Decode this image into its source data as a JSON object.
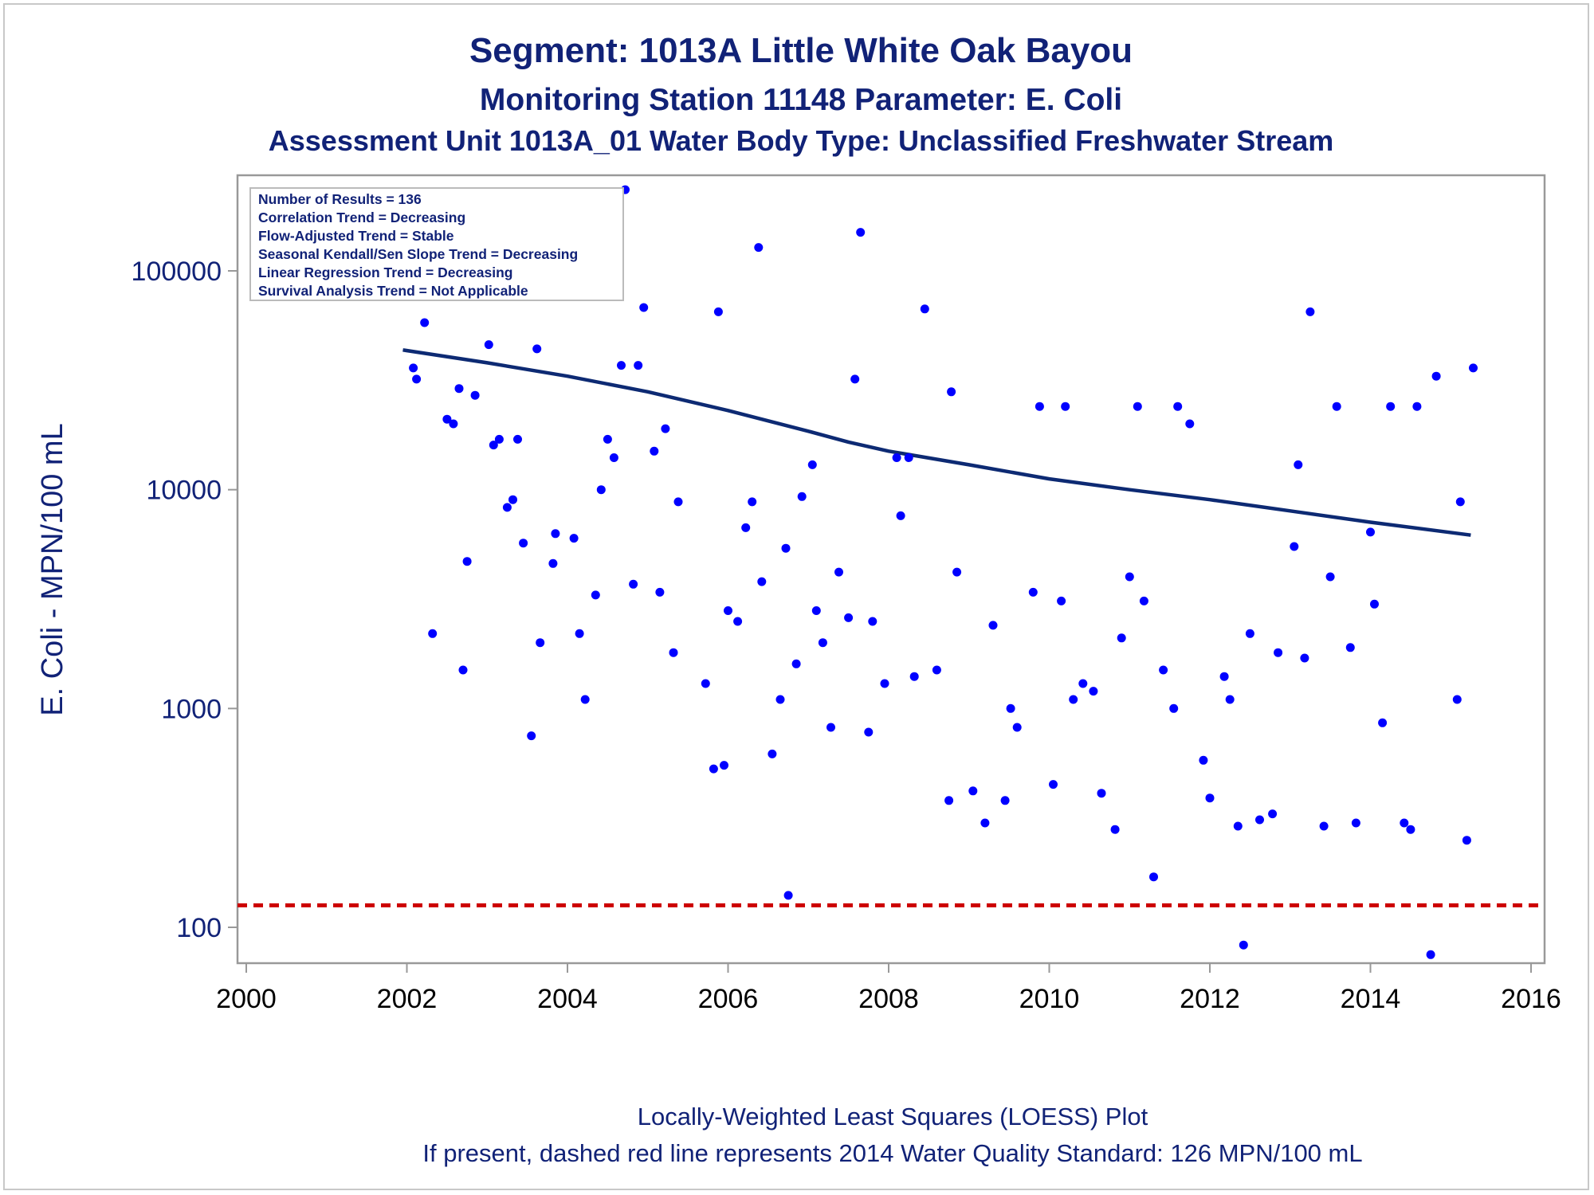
{
  "colors": {
    "title": "#112277",
    "axis_text": "#112277",
    "tick_text": "#000000",
    "point": "#0000ff",
    "loess": "#0d2a73",
    "standard_line": "#cc0000",
    "frame": "#999999",
    "legend_border": "#bbbbbb"
  },
  "chart_data": {
    "type": "scatter",
    "title": "Segment: 1013A  Little White Oak Bayou",
    "subtitle": "Monitoring Station 11148 Parameter: E. Coli",
    "subtitle2": "Assessment Unit 1013A_01   Water Body Type: Unclassified Freshwater Stream",
    "xlabel": "",
    "ylabel": "E. Coli - MPN/100 mL",
    "x_scale": "linear",
    "y_scale": "log",
    "xlim": [
      2000,
      2016
    ],
    "ylim": [
      68,
      260000
    ],
    "x_ticks": [
      2000,
      2002,
      2004,
      2006,
      2008,
      2010,
      2012,
      2014,
      2016
    ],
    "x_tick_labels": [
      "2000",
      "2002",
      "2004",
      "2006",
      "2008",
      "2010",
      "2012",
      "2014",
      "2016"
    ],
    "y_ticks": [
      100,
      1000,
      10000,
      100000
    ],
    "y_tick_labels": [
      "100",
      "1000",
      "10000",
      "100000"
    ],
    "grid": false,
    "legend_placement": "top-left",
    "stats_box": [
      "Number of Results = 136",
      "Correlation Trend = Decreasing",
      "Flow-Adjusted Trend = Stable",
      "Seasonal Kendall/Sen Slope Trend = Decreasing",
      "Linear Regression Trend = Decreasing",
      "Survival Analysis Trend = Not Applicable"
    ],
    "reference_line": {
      "y": 126,
      "style": "dashed"
    },
    "series": [
      {
        "kind": "scatter",
        "points": [
          [
            2001.92,
            155000
          ],
          [
            2001.98,
            196000
          ],
          [
            2002.08,
            36000
          ],
          [
            2002.12,
            32000
          ],
          [
            2002.22,
            58000
          ],
          [
            2002.32,
            2200
          ],
          [
            2002.4,
            155000
          ],
          [
            2002.5,
            21000
          ],
          [
            2002.58,
            20000
          ],
          [
            2002.65,
            29000
          ],
          [
            2002.7,
            1500
          ],
          [
            2002.75,
            4700
          ],
          [
            2002.85,
            27000
          ],
          [
            2003.02,
            46000
          ],
          [
            2003.08,
            16000
          ],
          [
            2003.15,
            17000
          ],
          [
            2003.25,
            8300
          ],
          [
            2003.32,
            9000
          ],
          [
            2003.38,
            17000
          ],
          [
            2003.45,
            5700
          ],
          [
            2003.55,
            750
          ],
          [
            2003.62,
            44000
          ],
          [
            2003.66,
            2000
          ],
          [
            2003.82,
            4600
          ],
          [
            2003.85,
            6300
          ],
          [
            2003.92,
            77000
          ],
          [
            2004.08,
            6000
          ],
          [
            2004.15,
            2200
          ],
          [
            2004.22,
            1100
          ],
          [
            2004.35,
            3300
          ],
          [
            2004.42,
            10000
          ],
          [
            2004.5,
            17000
          ],
          [
            2004.58,
            14000
          ],
          [
            2004.67,
            37000
          ],
          [
            2004.72,
            235000
          ],
          [
            2004.82,
            3700
          ],
          [
            2004.88,
            37000
          ],
          [
            2004.95,
            68000
          ],
          [
            2005.08,
            15000
          ],
          [
            2005.15,
            3400
          ],
          [
            2005.22,
            19000
          ],
          [
            2005.32,
            1800
          ],
          [
            2005.38,
            8800
          ],
          [
            2005.72,
            1300
          ],
          [
            2005.82,
            530
          ],
          [
            2005.88,
            65000
          ],
          [
            2005.95,
            550
          ],
          [
            2006.0,
            2800
          ],
          [
            2006.12,
            2500
          ],
          [
            2006.22,
            6700
          ],
          [
            2006.3,
            8800
          ],
          [
            2006.38,
            128000
          ],
          [
            2006.42,
            3800
          ],
          [
            2006.55,
            620
          ],
          [
            2006.65,
            1100
          ],
          [
            2006.72,
            5400
          ],
          [
            2006.75,
            140
          ],
          [
            2006.85,
            1600
          ],
          [
            2006.92,
            9300
          ],
          [
            2007.05,
            13000
          ],
          [
            2007.1,
            2800
          ],
          [
            2007.18,
            2000
          ],
          [
            2007.28,
            820
          ],
          [
            2007.38,
            4200
          ],
          [
            2007.5,
            2600
          ],
          [
            2007.58,
            32000
          ],
          [
            2007.65,
            150000
          ],
          [
            2007.75,
            780
          ],
          [
            2007.8,
            2500
          ],
          [
            2007.95,
            1300
          ],
          [
            2008.1,
            14000
          ],
          [
            2008.15,
            7600
          ],
          [
            2008.25,
            14000
          ],
          [
            2008.32,
            1400
          ],
          [
            2008.45,
            67000
          ],
          [
            2008.6,
            1500
          ],
          [
            2008.75,
            380
          ],
          [
            2008.78,
            28000
          ],
          [
            2008.85,
            4200
          ],
          [
            2009.05,
            420
          ],
          [
            2009.2,
            300
          ],
          [
            2009.3,
            2400
          ],
          [
            2009.45,
            380
          ],
          [
            2009.52,
            1000
          ],
          [
            2009.6,
            820
          ],
          [
            2009.8,
            3400
          ],
          [
            2009.88,
            24000
          ],
          [
            2010.05,
            450
          ],
          [
            2010.15,
            3100
          ],
          [
            2010.2,
            24000
          ],
          [
            2010.3,
            1100
          ],
          [
            2010.42,
            1300
          ],
          [
            2010.55,
            1200
          ],
          [
            2010.65,
            410
          ],
          [
            2010.82,
            280
          ],
          [
            2010.9,
            2100
          ],
          [
            2011.0,
            4000
          ],
          [
            2011.1,
            24000
          ],
          [
            2011.18,
            3100
          ],
          [
            2011.3,
            170
          ],
          [
            2011.42,
            1500
          ],
          [
            2011.55,
            1000
          ],
          [
            2011.6,
            24000
          ],
          [
            2011.75,
            20000
          ],
          [
            2011.92,
            580
          ],
          [
            2012.0,
            390
          ],
          [
            2012.18,
            1400
          ],
          [
            2012.25,
            1100
          ],
          [
            2012.35,
            290
          ],
          [
            2012.42,
            83
          ],
          [
            2012.5,
            2200
          ],
          [
            2012.62,
            310
          ],
          [
            2012.78,
            330
          ],
          [
            2012.85,
            1800
          ],
          [
            2013.05,
            5500
          ],
          [
            2013.1,
            13000
          ],
          [
            2013.18,
            1700
          ],
          [
            2013.25,
            65000
          ],
          [
            2013.42,
            290
          ],
          [
            2013.5,
            4000
          ],
          [
            2013.58,
            24000
          ],
          [
            2013.75,
            1900
          ],
          [
            2013.82,
            300
          ],
          [
            2014.0,
            6400
          ],
          [
            2014.05,
            3000
          ],
          [
            2014.15,
            860
          ],
          [
            2014.25,
            24000
          ],
          [
            2014.42,
            300
          ],
          [
            2014.5,
            280
          ],
          [
            2014.58,
            24000
          ],
          [
            2014.75,
            75
          ],
          [
            2014.82,
            33000
          ],
          [
            2015.08,
            1100
          ],
          [
            2015.12,
            8800
          ],
          [
            2015.2,
            250
          ],
          [
            2015.28,
            36000
          ]
        ]
      },
      {
        "kind": "loess",
        "x": [
          2001.95,
          2003.0,
          2004.0,
          2005.0,
          2006.0,
          2007.0,
          2007.5,
          2008.0,
          2009.0,
          2010.0,
          2011.0,
          2012.0,
          2013.0,
          2014.0,
          2015.25
        ],
        "y": [
          43500,
          38000,
          33000,
          28000,
          23000,
          18500,
          16500,
          15000,
          13000,
          11200,
          10000,
          9000,
          8000,
          7100,
          6200
        ]
      }
    ]
  },
  "footnotes": {
    "line1": "Locally-Weighted Least Squares (LOESS) Plot",
    "line2": "If present, dashed red line represents 2014 Water Quality Standard: 126 MPN/100 mL"
  }
}
